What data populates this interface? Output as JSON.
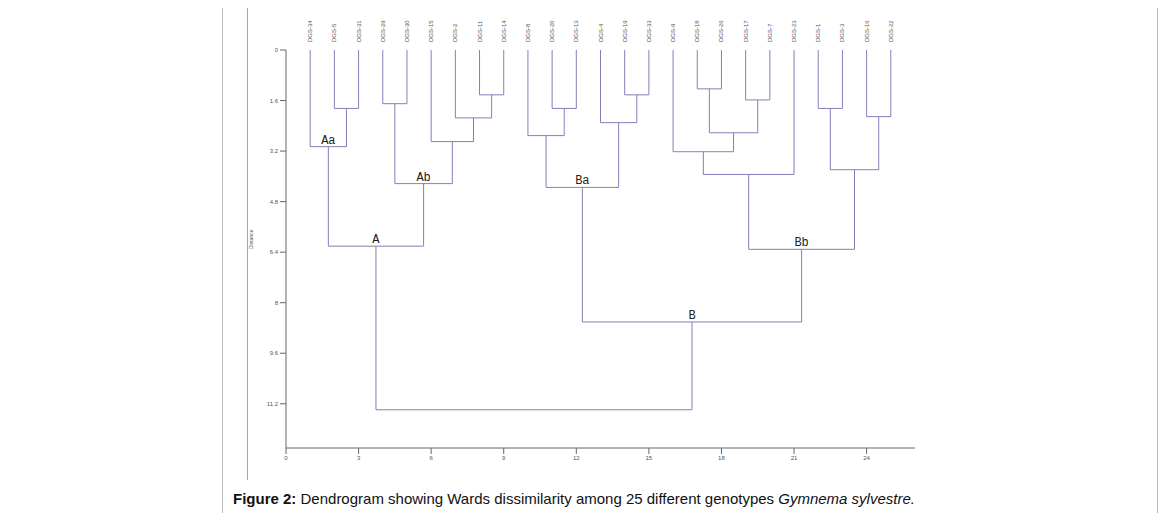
{
  "chart_data": {
    "type": "dendrogram",
    "caption": {
      "label": "Figure 2:",
      "text": "Dendrogram showing Wards dissimilarity among 25 different genotypes",
      "species": "Gymnema sylvestre."
    },
    "y_label": "Distance",
    "xlim": [
      0,
      26
    ],
    "xticks": [
      0,
      3,
      6,
      9,
      12,
      15,
      18,
      21,
      24
    ],
    "ylim": [
      0,
      12.6
    ],
    "yticks": [
      0,
      1.6,
      3.2,
      4.8,
      6.4,
      8,
      9.6,
      11.2
    ],
    "color": "#8080b8",
    "tree": {
      "height": 11.39,
      "children": [
        {
          "height": 6.21,
          "label": "A",
          "children": [
            {
              "height": 3.06,
              "label": "Aa",
              "children": [
                "DGS-34",
                {
                  "height": 1.85,
                  "children": [
                    "DGS-5",
                    "DGS-31"
                  ]
                }
              ]
            },
            {
              "height": 4.23,
              "label": "Ab",
              "children": [
                {
                  "height": 1.7,
                  "children": [
                    "DGS-29",
                    "DGS-30"
                  ]
                },
                {
                  "height": 2.9,
                  "children": [
                    "DGS-15",
                    {
                      "height": 2.15,
                      "children": [
                        "DGS-2",
                        {
                          "height": 1.42,
                          "children": [
                            "DGS-11",
                            "DGS-14"
                          ]
                        }
                      ]
                    }
                  ]
                }
              ]
            }
          ]
        },
        {
          "height": 8.61,
          "label": "B",
          "children": [
            {
              "height": 4.35,
              "label": "Ba",
              "children": [
                {
                  "height": 2.71,
                  "children": [
                    "DGS-8",
                    {
                      "height": 1.85,
                      "children": [
                        "DGS-20",
                        "DGS-13"
                      ]
                    }
                  ]
                },
                {
                  "height": 2.3,
                  "children": [
                    "DGS-4",
                    {
                      "height": 1.42,
                      "children": [
                        "DGS-19",
                        "DGS-33"
                      ]
                    }
                  ]
                }
              ]
            },
            {
              "height": 6.31,
              "label": "Bb",
              "children": [
                {
                  "height": 3.94,
                  "children": [
                    {
                      "height": 3.22,
                      "children": [
                        "DGS-9",
                        {
                          "height": 2.62,
                          "children": [
                            {
                              "height": 1.23,
                              "children": [
                                "DGS-18",
                                "DGS-26"
                              ]
                            },
                            {
                              "height": 1.58,
                              "children": [
                                "DGS-17",
                                "DGS-7"
                              ]
                            }
                          ]
                        }
                      ]
                    },
                    "DGS-23"
                  ]
                },
                {
                  "height": 3.79,
                  "children": [
                    {
                      "height": 1.85,
                      "children": [
                        "DGS-1",
                        "DGS-3"
                      ]
                    },
                    {
                      "height": 2.11,
                      "children": [
                        "DGS-16",
                        "DGS-22"
                      ]
                    }
                  ]
                }
              ]
            }
          ]
        }
      ]
    }
  }
}
